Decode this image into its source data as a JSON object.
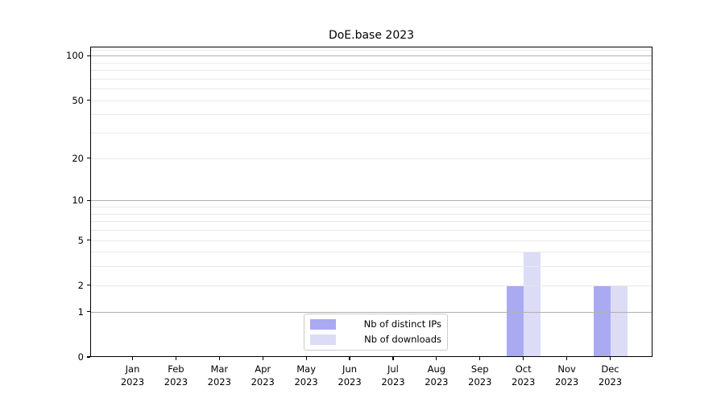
{
  "title": "DoE.base 2023",
  "chart_data": {
    "type": "bar",
    "title": "DoE.base 2023",
    "categories": [
      "Jan 2023",
      "Feb 2023",
      "Mar 2023",
      "Apr 2023",
      "May 2023",
      "Jun 2023",
      "Jul 2023",
      "Aug 2023",
      "Sep 2023",
      "Oct 2023",
      "Nov 2023",
      "Dec 2023"
    ],
    "series": [
      {
        "name": "Nb of distinct IPs",
        "color": "#aaaaf2",
        "values": [
          0,
          0,
          0,
          0,
          0,
          0,
          0,
          0,
          0,
          2,
          0,
          2
        ]
      },
      {
        "name": "Nb of downloads",
        "color": "#dcdcf6",
        "values": [
          0,
          0,
          0,
          0,
          0,
          0,
          0,
          0,
          0,
          4,
          0,
          2
        ]
      }
    ],
    "xlabel": "",
    "ylabel": "",
    "yscale": "log1p",
    "ylim": [
      0,
      115
    ],
    "yticks": [
      0,
      1,
      2,
      5,
      10,
      20,
      50,
      100
    ],
    "grid": "on",
    "grid_major_at": [
      1,
      10,
      100
    ],
    "grid_minor_at": [
      2,
      3,
      4,
      5,
      6,
      7,
      8,
      9,
      20,
      30,
      40,
      50,
      60,
      70,
      80,
      90,
      110
    ],
    "legend": {
      "position": "lower center",
      "entries": [
        "Nb of distinct IPs",
        "Nb of downloads"
      ]
    }
  },
  "colors": {
    "background": "#ffffff",
    "axis": "#000000",
    "grid_major": "#b0b0b0",
    "grid_minor": "#e9e9ec",
    "text": "#000000",
    "legend_border": "#cccccc"
  }
}
